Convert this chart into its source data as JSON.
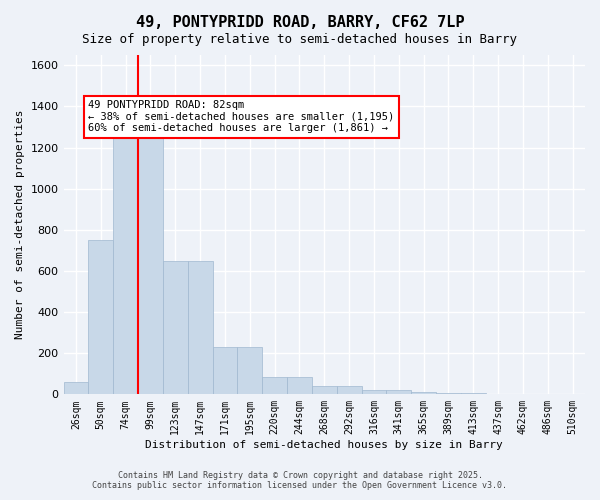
{
  "title": "49, PONTYPRIDD ROAD, BARRY, CF62 7LP",
  "subtitle": "Size of property relative to semi-detached houses in Barry",
  "xlabel": "Distribution of semi-detached houses by size in Barry",
  "ylabel": "Number of semi-detached properties",
  "bar_labels": [
    "26sqm",
    "50sqm",
    "74sqm",
    "99sqm",
    "123sqm",
    "147sqm",
    "171sqm",
    "195sqm",
    "220sqm",
    "244sqm",
    "268sqm",
    "292sqm",
    "316sqm",
    "341sqm",
    "365sqm",
    "389sqm",
    "413sqm",
    "437sqm",
    "462sqm",
    "486sqm",
    "510sqm"
  ],
  "bar_values": [
    60,
    750,
    1300,
    1300,
    650,
    650,
    230,
    230,
    85,
    85,
    40,
    40,
    20,
    20,
    10,
    5,
    5,
    2,
    2,
    1,
    1
  ],
  "bar_color": "#c8d8e8",
  "bar_edge_color": "#a0b8d0",
  "red_line_x": 2.5,
  "annotation_title": "49 PONTYPRIDD ROAD: 82sqm",
  "annotation_line1": "← 38% of semi-detached houses are smaller (1,195)",
  "annotation_line2": "60% of semi-detached houses are larger (1,861) →",
  "annotation_box_color": "white",
  "annotation_box_edge_color": "red",
  "ylim": [
    0,
    1650
  ],
  "yticks": [
    0,
    200,
    400,
    600,
    800,
    1000,
    1200,
    1400,
    1600
  ],
  "bg_color": "#eef2f8",
  "grid_color": "white",
  "footer_line1": "Contains HM Land Registry data © Crown copyright and database right 2025.",
  "footer_line2": "Contains public sector information licensed under the Open Government Licence v3.0."
}
